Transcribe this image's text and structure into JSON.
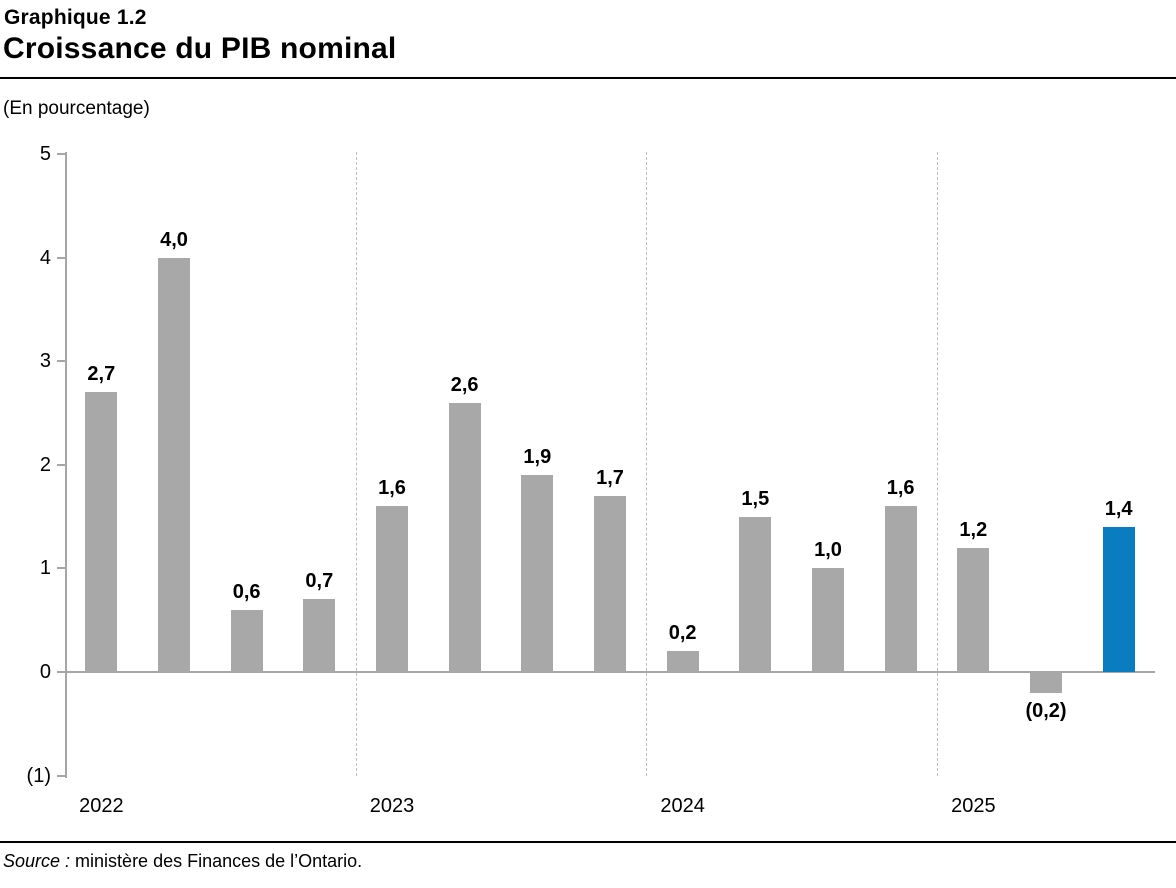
{
  "header": {
    "kicker": "Graphique 1.2",
    "title": "Croissance du PIB nominal"
  },
  "axis_note": "(En pourcentage)",
  "source": {
    "prefix": "Source :",
    "text": " ministère des Finances de l’Ontario."
  },
  "colors": {
    "bar": "#a8a8a8",
    "highlight": "#0a7cc0",
    "axis": "#a6a6a6",
    "separator": "#bcbcbc",
    "text": "#000000"
  },
  "chart_data": {
    "type": "bar",
    "title": "Croissance du PIB nominal",
    "ylabel": "(En pourcentage)",
    "ylim": [
      -1,
      5
    ],
    "yticks": [
      5,
      4,
      3,
      2,
      1,
      0,
      -1
    ],
    "ytick_labels": [
      "5",
      "4",
      "3",
      "2",
      "1",
      "0",
      "(1)"
    ],
    "grid": "dashed vertical separators between year groups",
    "legend_position": "none",
    "groups": [
      {
        "year": "2022",
        "values": [
          2.7,
          4.0,
          0.6,
          0.7
        ],
        "labels": [
          "2,7",
          "4,0",
          "0,6",
          "0,7"
        ],
        "highlight_indices": []
      },
      {
        "year": "2023",
        "values": [
          1.6,
          2.6,
          1.9,
          1.7
        ],
        "labels": [
          "1,6",
          "2,6",
          "1,9",
          "1,7"
        ],
        "highlight_indices": []
      },
      {
        "year": "2024",
        "values": [
          0.2,
          1.5,
          1.0,
          1.6
        ],
        "labels": [
          "0,2",
          "1,5",
          "1,0",
          "1,6"
        ],
        "highlight_indices": []
      },
      {
        "year": "2025",
        "values": [
          1.2,
          -0.2,
          1.4
        ],
        "labels": [
          "1,2",
          "(0,2)",
          "1,4"
        ],
        "highlight_indices": [
          2
        ]
      }
    ]
  }
}
